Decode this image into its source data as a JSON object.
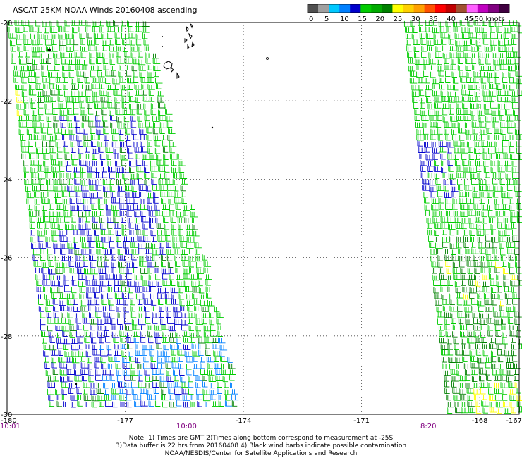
{
  "title": "ASCAT 25KM NOAA Winds 20160408 ascending",
  "legend": {
    "labels": [
      "0",
      "5",
      "10",
      "15",
      "20",
      "25",
      "30",
      "35",
      "40",
      "45",
      ">50 knots"
    ],
    "colors": [
      "#505050",
      "#a0a0a0",
      "#00c8ff",
      "#0080ff",
      "#0000cc",
      "#00cc00",
      "#00aa00",
      "#008000",
      "#ffff00",
      "#ffd000",
      "#ffa000",
      "#ff5000",
      "#ff0000",
      "#c00000",
      "#a05030",
      "#ff60ff",
      "#c000c0",
      "#800080",
      "#400040"
    ]
  },
  "map": {
    "lon_range": [
      -180,
      -167
    ],
    "lat_range": [
      -30,
      -20
    ],
    "lon_ticks": [
      "-180",
      "-177",
      "-174",
      "-171",
      "-168",
      "-167"
    ],
    "lat_ticks": [
      "-20",
      "-22",
      "-24",
      "-26",
      "-28",
      "-30"
    ]
  },
  "times": {
    "left": "10:01",
    "middle": "10:00",
    "right": "8:20"
  },
  "notes": {
    "line1": "Note: 1) Times are GMT 2)Times along bottom correspond to measurement at -25S",
    "line2": "3)Data buffer is 22 hrs from 20160408 4) Black wind barbs indicate possible contamination",
    "credit": "NOAA/NESDIS/Center for Satellite Applications and Research"
  }
}
